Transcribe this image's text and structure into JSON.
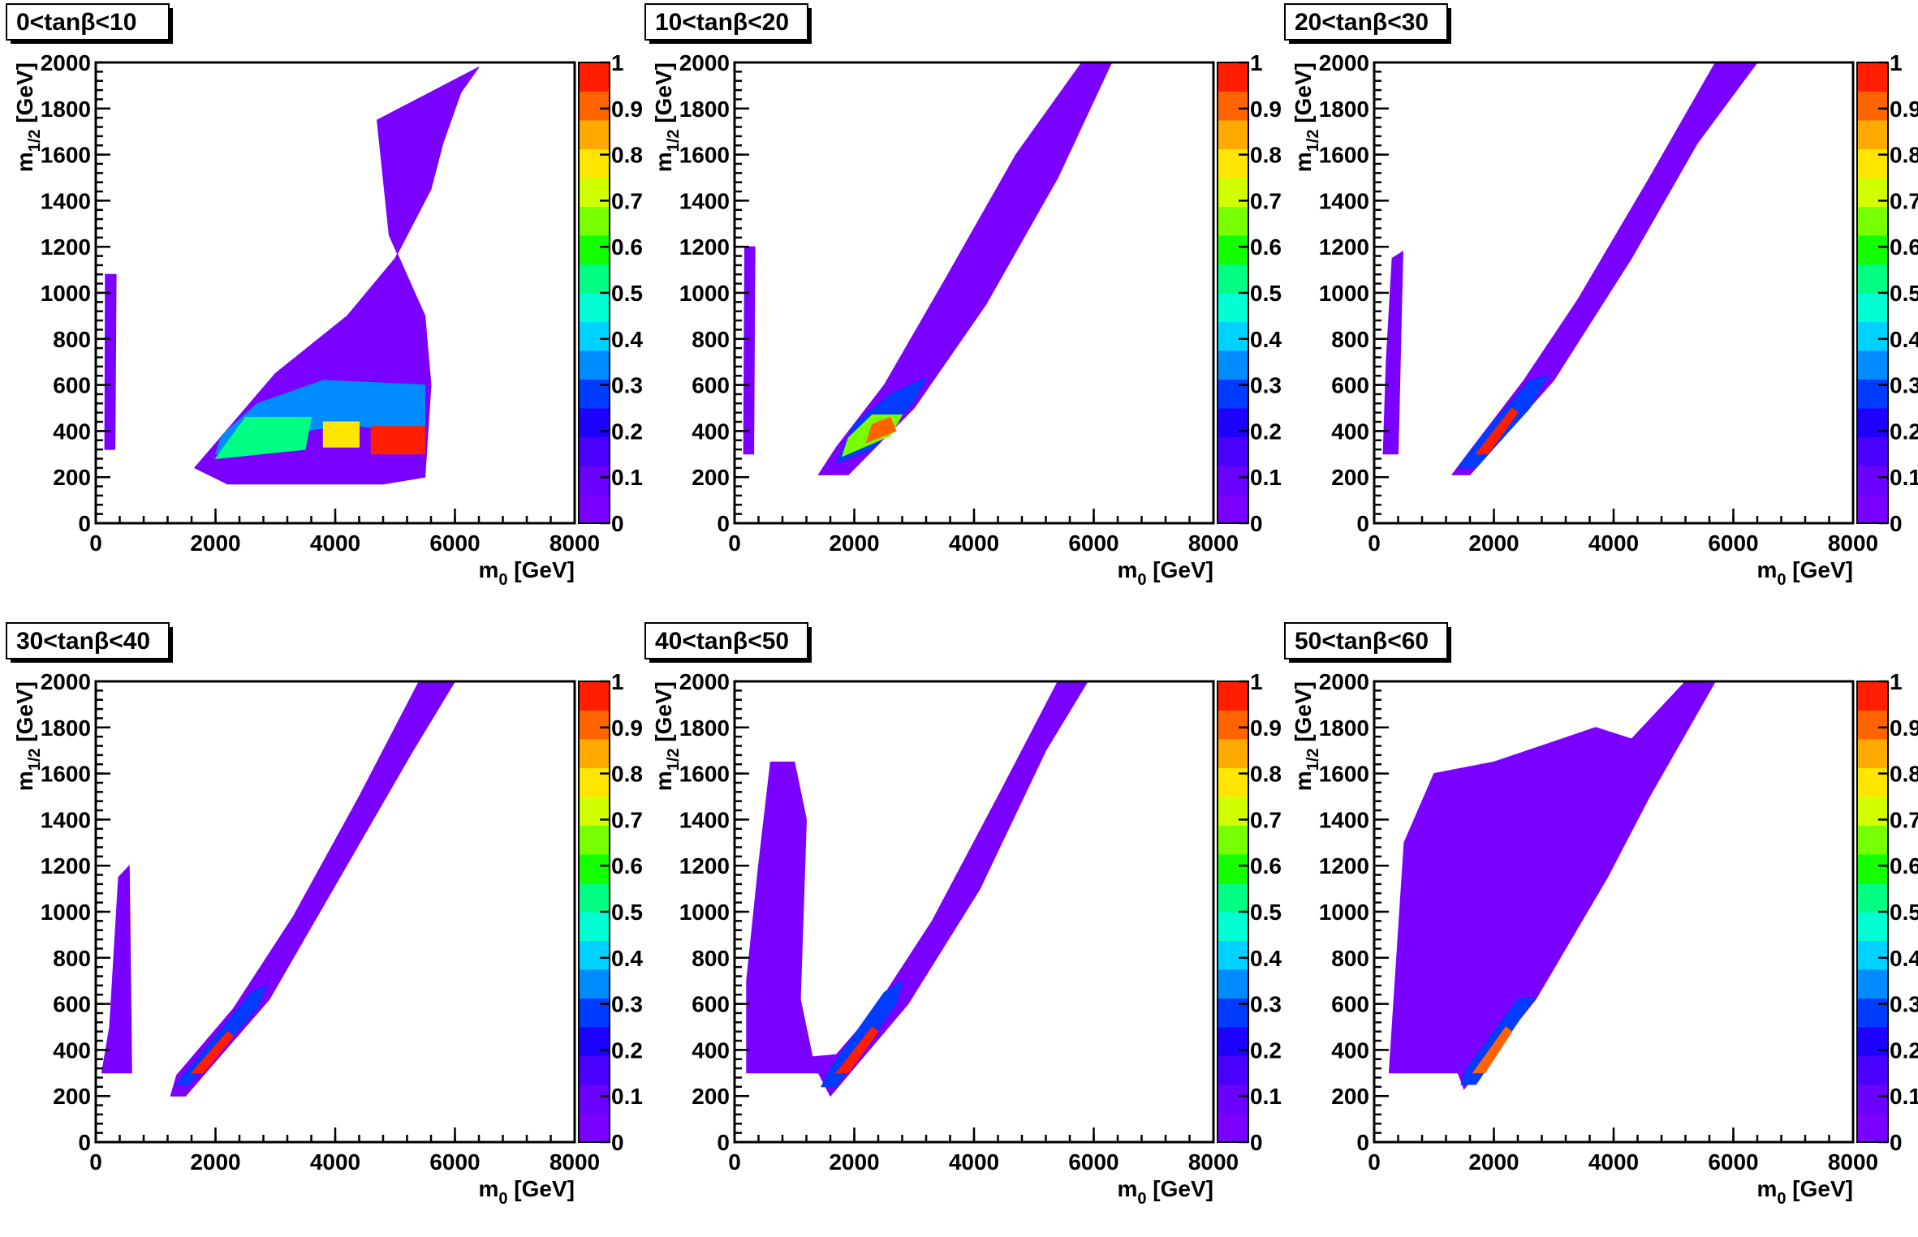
{
  "figure": {
    "x_label_main": "m",
    "x_label_sub": "0",
    "x_label_unit": "[GeV]",
    "y_label_main": "m",
    "y_label_sub": "1/2",
    "y_label_unit": "[GeV]"
  },
  "palette": [
    "#7a00ff",
    "#6a00ff",
    "#4a00ff",
    "#1e00ff",
    "#003cff",
    "#008cff",
    "#00d2ff",
    "#00ffd2",
    "#00ff82",
    "#14ff00",
    "#78ff00",
    "#d2ff00",
    "#ffe600",
    "#ffaa00",
    "#ff6400",
    "#ff1e00"
  ],
  "colorbar": {
    "min": 0,
    "max": 1,
    "tick_labels": [
      "0",
      "0.1",
      "0.2",
      "0.3",
      "0.4",
      "0.5",
      "0.6",
      "0.7",
      "0.8",
      "0.9",
      "1"
    ]
  },
  "chart_data": [
    {
      "type": "heatmap",
      "title": "0<tanβ<10",
      "x_ticks": [
        0,
        2000,
        4000,
        6000,
        8000
      ],
      "y_ticks": [
        0,
        200,
        400,
        600,
        800,
        1000,
        1200,
        1400,
        1600,
        1800,
        2000
      ],
      "xlim": [
        0,
        8000
      ],
      "ylim": [
        0,
        2000
      ],
      "regions": [
        {
          "polygon": [
            [
              150,
              320
            ],
            [
              320,
              320
            ],
            [
              340,
              1080
            ],
            [
              160,
              1080
            ]
          ],
          "value": 0.02
        },
        {
          "polygon": [
            [
              1650,
              240
            ],
            [
              2200,
              170
            ],
            [
              4800,
              170
            ],
            [
              5500,
              200
            ],
            [
              5600,
              600
            ],
            [
              5500,
              900
            ],
            [
              4900,
              1250
            ],
            [
              4700,
              1750
            ],
            [
              6400,
              1980
            ],
            [
              6100,
              1870
            ],
            [
              5800,
              1650
            ],
            [
              5600,
              1450
            ],
            [
              5000,
              1150
            ],
            [
              4200,
              900
            ],
            [
              3000,
              650
            ]
          ],
          "value": 0.02
        },
        {
          "polygon": [
            [
              2000,
              300
            ],
            [
              2600,
              360
            ],
            [
              4200,
              430
            ],
            [
              5500,
              380
            ],
            [
              5500,
              600
            ],
            [
              3800,
              620
            ],
            [
              2700,
              520
            ],
            [
              2100,
              380
            ]
          ],
          "value": 0.35
        },
        {
          "polygon": [
            [
              2000,
              280
            ],
            [
              3500,
              320
            ],
            [
              3600,
              460
            ],
            [
              2500,
              460
            ]
          ],
          "value": 0.55
        },
        {
          "polygon": [
            [
              4600,
              300
            ],
            [
              5500,
              300
            ],
            [
              5500,
              420
            ],
            [
              4600,
              420
            ]
          ],
          "value": 0.95
        },
        {
          "polygon": [
            [
              3800,
              330
            ],
            [
              4400,
              330
            ],
            [
              4400,
              440
            ],
            [
              3800,
              440
            ]
          ],
          "value": 0.8
        }
      ]
    },
    {
      "type": "heatmap",
      "title": "10<tanβ<20",
      "x_ticks": [
        0,
        2000,
        4000,
        6000,
        8000
      ],
      "y_ticks": [
        0,
        200,
        400,
        600,
        800,
        1000,
        1200,
        1400,
        1600,
        1800,
        2000
      ],
      "xlim": [
        0,
        8000
      ],
      "ylim": [
        0,
        2000
      ],
      "regions": [
        {
          "polygon": [
            [
              150,
              300
            ],
            [
              320,
              300
            ],
            [
              340,
              1200
            ],
            [
              170,
              1200
            ]
          ],
          "value": 0.02
        },
        {
          "polygon": [
            [
              1400,
              210
            ],
            [
              1900,
              210
            ],
            [
              3000,
              500
            ],
            [
              4200,
              950
            ],
            [
              5400,
              1500
            ],
            [
              6300,
              2000
            ],
            [
              5800,
              2000
            ],
            [
              4700,
              1600
            ],
            [
              3500,
              1050
            ],
            [
              2500,
              600
            ],
            [
              1700,
              330
            ]
          ],
          "value": 0.02
        },
        {
          "polygon": [
            [
              1700,
              260
            ],
            [
              2300,
              320
            ],
            [
              3000,
              530
            ],
            [
              3200,
              630
            ],
            [
              2600,
              560
            ],
            [
              2000,
              430
            ]
          ],
          "value": 0.3
        },
        {
          "polygon": [
            [
              1800,
              290
            ],
            [
              2600,
              380
            ],
            [
              2800,
              470
            ],
            [
              2300,
              470
            ],
            [
              1900,
              370
            ]
          ],
          "value": 0.65
        },
        {
          "polygon": [
            [
              2200,
              350
            ],
            [
              2700,
              400
            ],
            [
              2600,
              460
            ],
            [
              2300,
              430
            ]
          ],
          "value": 0.9
        }
      ]
    },
    {
      "type": "heatmap",
      "title": "20<tanβ<30",
      "x_ticks": [
        0,
        2000,
        4000,
        6000,
        8000
      ],
      "y_ticks": [
        0,
        200,
        400,
        600,
        800,
        1000,
        1200,
        1400,
        1600,
        1800,
        2000
      ],
      "xlim": [
        0,
        8000
      ],
      "ylim": [
        0,
        2000
      ],
      "regions": [
        {
          "polygon": [
            [
              150,
              300
            ],
            [
              400,
              300
            ],
            [
              480,
              1180
            ],
            [
              300,
              1150
            ],
            [
              200,
              700
            ]
          ],
          "value": 0.02
        },
        {
          "polygon": [
            [
              1300,
              210
            ],
            [
              1600,
              210
            ],
            [
              3000,
              620
            ],
            [
              4300,
              1150
            ],
            [
              5400,
              1650
            ],
            [
              6400,
              2000
            ],
            [
              5700,
              2000
            ],
            [
              4600,
              1500
            ],
            [
              3400,
              970
            ],
            [
              2500,
              620
            ],
            [
              1500,
              280
            ]
          ],
          "value": 0.02
        },
        {
          "polygon": [
            [
              1400,
              240
            ],
            [
              1700,
              240
            ],
            [
              2600,
              500
            ],
            [
              2900,
              640
            ],
            [
              2600,
              620
            ],
            [
              1800,
              380
            ]
          ],
          "value": 0.3
        },
        {
          "polygon": [
            [
              1700,
              300
            ],
            [
              1900,
              300
            ],
            [
              2400,
              480
            ],
            [
              2300,
              500
            ]
          ],
          "value": 0.95
        }
      ]
    },
    {
      "type": "heatmap",
      "title": "30<tanβ<40",
      "x_ticks": [
        0,
        2000,
        4000,
        6000,
        8000
      ],
      "y_ticks": [
        0,
        200,
        400,
        600,
        800,
        1000,
        1200,
        1400,
        1600,
        1800,
        2000
      ],
      "xlim": [
        0,
        8000
      ],
      "ylim": [
        0,
        2000
      ],
      "regions": [
        {
          "polygon": [
            [
              100,
              300
            ],
            [
              600,
              300
            ],
            [
              560,
              1200
            ],
            [
              380,
              1150
            ],
            [
              230,
              500
            ]
          ],
          "value": 0.02
        },
        {
          "polygon": [
            [
              1250,
              200
            ],
            [
              1500,
              200
            ],
            [
              2900,
              620
            ],
            [
              4300,
              1250
            ],
            [
              5300,
              1700
            ],
            [
              6000,
              2000
            ],
            [
              5400,
              2000
            ],
            [
              4400,
              1500
            ],
            [
              3300,
              980
            ],
            [
              2300,
              580
            ],
            [
              1350,
              290
            ]
          ],
          "value": 0.02
        },
        {
          "polygon": [
            [
              1350,
              250
            ],
            [
              1550,
              250
            ],
            [
              2700,
              580
            ],
            [
              2850,
              680
            ],
            [
              2600,
              650
            ],
            [
              1600,
              330
            ]
          ],
          "value": 0.3
        },
        {
          "polygon": [
            [
              1600,
              300
            ],
            [
              1800,
              300
            ],
            [
              2300,
              460
            ],
            [
              2200,
              480
            ]
          ],
          "value": 0.95
        }
      ]
    },
    {
      "type": "heatmap",
      "title": "40<tanβ<50",
      "x_ticks": [
        0,
        2000,
        4000,
        6000,
        8000
      ],
      "y_ticks": [
        0,
        200,
        400,
        600,
        800,
        1000,
        1200,
        1400,
        1600,
        1800,
        2000
      ],
      "xlim": [
        0,
        8000
      ],
      "ylim": [
        0,
        2000
      ],
      "regions": [
        {
          "polygon": [
            [
              200,
              300
            ],
            [
              1400,
              300
            ],
            [
              1600,
              200
            ],
            [
              2900,
              600
            ],
            [
              4100,
              1100
            ],
            [
              5200,
              1700
            ],
            [
              5900,
              2000
            ],
            [
              5400,
              2000
            ],
            [
              4400,
              1500
            ],
            [
              3300,
              960
            ],
            [
              2300,
              560
            ],
            [
              1700,
              380
            ],
            [
              1300,
              370
            ],
            [
              1100,
              620
            ],
            [
              1200,
              1400
            ],
            [
              1000,
              1650
            ],
            [
              600,
              1650
            ],
            [
              400,
              1200
            ],
            [
              200,
              700
            ]
          ],
          "value": 0.02
        },
        {
          "polygon": [
            [
              1450,
              240
            ],
            [
              1700,
              240
            ],
            [
              2700,
              600
            ],
            [
              2800,
              700
            ],
            [
              2500,
              650
            ],
            [
              1600,
              320
            ]
          ],
          "value": 0.3
        },
        {
          "polygon": [
            [
              1700,
              300
            ],
            [
              1900,
              300
            ],
            [
              2400,
              480
            ],
            [
              2300,
              500
            ]
          ],
          "value": 0.95
        }
      ]
    },
    {
      "type": "heatmap",
      "title": "50<tanβ<60",
      "x_ticks": [
        0,
        2000,
        4000,
        6000,
        8000
      ],
      "y_ticks": [
        0,
        200,
        400,
        600,
        800,
        1000,
        1200,
        1400,
        1600,
        1800,
        2000
      ],
      "xlim": [
        0,
        8000
      ],
      "ylim": [
        0,
        2000
      ],
      "regions": [
        {
          "polygon": [
            [
              250,
              300
            ],
            [
              1400,
              300
            ],
            [
              1500,
              230
            ],
            [
              2700,
              620
            ],
            [
              3900,
              1150
            ],
            [
              4600,
              1500
            ],
            [
              5700,
              2000
            ],
            [
              5200,
              2000
            ],
            [
              4300,
              1750
            ],
            [
              3700,
              1800
            ],
            [
              2000,
              1650
            ],
            [
              1000,
              1600
            ],
            [
              500,
              1300
            ]
          ],
          "value": 0.02
        },
        {
          "polygon": [
            [
              1450,
              250
            ],
            [
              1700,
              250
            ],
            [
              2500,
              560
            ],
            [
              2700,
              630
            ],
            [
              2400,
              620
            ],
            [
              1550,
              320
            ]
          ],
          "value": 0.3
        },
        {
          "polygon": [
            [
              1650,
              300
            ],
            [
              1850,
              300
            ],
            [
              2300,
              480
            ],
            [
              2200,
              500
            ]
          ],
          "value": 0.9
        }
      ]
    }
  ]
}
